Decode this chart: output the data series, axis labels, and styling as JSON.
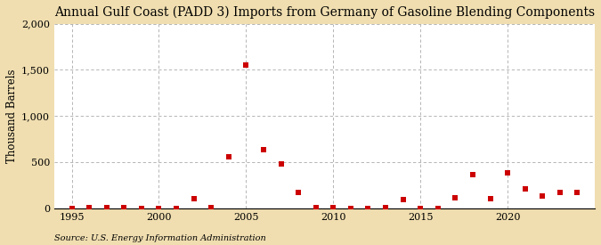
{
  "title": "Annual Gulf Coast (PADD 3) Imports from Germany of Gasoline Blending Components",
  "ylabel": "Thousand Barrels",
  "source": "Source: U.S. Energy Information Administration",
  "background_color": "#f0deb0",
  "plot_bg_color": "#ffffff",
  "grid_color": "#aaaaaa",
  "marker_color": "#cc0000",
  "years": [
    1995,
    1996,
    1997,
    1998,
    1999,
    2000,
    2001,
    2002,
    2003,
    2004,
    2005,
    2006,
    2007,
    2008,
    2009,
    2010,
    2011,
    2012,
    2013,
    2014,
    2015,
    2016,
    2017,
    2018,
    2019,
    2020,
    2021,
    2022,
    2023,
    2024
  ],
  "values": [
    2,
    5,
    5,
    5,
    3,
    3,
    3,
    105,
    10,
    560,
    1555,
    635,
    480,
    170,
    5,
    5,
    0,
    0,
    10,
    100,
    0,
    0,
    120,
    365,
    105,
    390,
    215,
    135,
    170,
    170
  ],
  "ylim": [
    0,
    2000
  ],
  "yticks": [
    0,
    500,
    1000,
    1500,
    2000
  ],
  "ytick_labels": [
    "0",
    "500",
    "1,000",
    "1,500",
    "2,000"
  ],
  "xlim": [
    1994.0,
    2025.0
  ],
  "xticks": [
    1995,
    2000,
    2005,
    2010,
    2015,
    2020
  ],
  "title_fontsize": 10,
  "label_fontsize": 8.5,
  "tick_fontsize": 8,
  "source_fontsize": 7,
  "marker_size": 18
}
